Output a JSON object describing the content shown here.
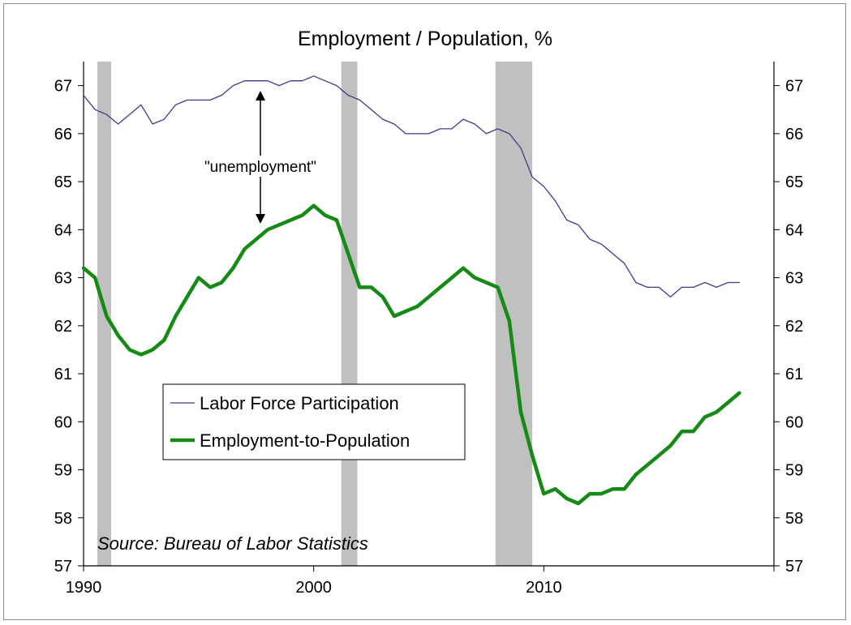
{
  "chart_data": {
    "type": "line",
    "title": "Employment / Population, %",
    "source": "Source: Bureau of Labor Statistics",
    "annotation": "\"unemployment\"",
    "x_range": [
      1990,
      2020
    ],
    "ylim": [
      57,
      67.5
    ],
    "y_ticks": [
      57,
      58,
      59,
      60,
      61,
      62,
      63,
      64,
      65,
      66,
      67
    ],
    "y_tick_labels": [
      "57",
      "58",
      "59",
      "60",
      "61",
      "62",
      "63",
      "64",
      "65",
      "66",
      "67"
    ],
    "x_ticks": [
      1990,
      2000,
      2010
    ],
    "x_tick_labels": [
      "1990",
      "2000",
      "2010"
    ],
    "recessions": [
      [
        1990.6,
        1991.2
      ],
      [
        2001.2,
        2001.9
      ],
      [
        2007.9,
        2009.5
      ]
    ],
    "legend": {
      "placement": "center-left"
    },
    "series": [
      {
        "name": "Labor Force Participation",
        "color": "#3c3c8c",
        "style": "thin",
        "x": [
          1990.0,
          1990.5,
          1991.0,
          1991.5,
          1992.0,
          1992.5,
          1993.0,
          1993.5,
          1994.0,
          1994.5,
          1995.0,
          1995.5,
          1996.0,
          1996.5,
          1997.0,
          1997.5,
          1998.0,
          1998.5,
          1999.0,
          1999.5,
          2000.0,
          2000.5,
          2001.0,
          2001.5,
          2002.0,
          2002.5,
          2003.0,
          2003.5,
          2004.0,
          2004.5,
          2005.0,
          2005.5,
          2006.0,
          2006.5,
          2007.0,
          2007.5,
          2008.0,
          2008.5,
          2009.0,
          2009.5,
          2010.0,
          2010.5,
          2011.0,
          2011.5,
          2012.0,
          2012.5,
          2013.0,
          2013.5,
          2014.0,
          2014.5,
          2015.0,
          2015.5,
          2016.0,
          2016.5,
          2017.0,
          2017.5,
          2018.0,
          2018.5
        ],
        "values": [
          66.8,
          66.5,
          66.4,
          66.2,
          66.4,
          66.6,
          66.2,
          66.3,
          66.6,
          66.7,
          66.7,
          66.7,
          66.8,
          67.0,
          67.1,
          67.1,
          67.1,
          67.0,
          67.1,
          67.1,
          67.2,
          67.1,
          67.0,
          66.8,
          66.7,
          66.5,
          66.3,
          66.2,
          66.0,
          66.0,
          66.0,
          66.1,
          66.1,
          66.3,
          66.2,
          66.0,
          66.1,
          66.0,
          65.7,
          65.1,
          64.9,
          64.6,
          64.2,
          64.1,
          63.8,
          63.7,
          63.5,
          63.3,
          62.9,
          62.8,
          62.8,
          62.6,
          62.8,
          62.8,
          62.9,
          62.8,
          62.9,
          62.9
        ]
      },
      {
        "name": "Employment-to-Population",
        "color": "#158a15",
        "style": "thick",
        "x": [
          1990.0,
          1990.5,
          1991.0,
          1991.5,
          1992.0,
          1992.5,
          1993.0,
          1993.5,
          1994.0,
          1994.5,
          1995.0,
          1995.5,
          1996.0,
          1996.5,
          1997.0,
          1997.5,
          1998.0,
          1998.5,
          1999.0,
          1999.5,
          2000.0,
          2000.5,
          2001.0,
          2001.5,
          2002.0,
          2002.5,
          2003.0,
          2003.5,
          2004.0,
          2004.5,
          2005.0,
          2005.5,
          2006.0,
          2006.5,
          2007.0,
          2007.5,
          2008.0,
          2008.5,
          2009.0,
          2009.5,
          2010.0,
          2010.5,
          2011.0,
          2011.5,
          2012.0,
          2012.5,
          2013.0,
          2013.5,
          2014.0,
          2014.5,
          2015.0,
          2015.5,
          2016.0,
          2016.5,
          2017.0,
          2017.5,
          2018.0,
          2018.5
        ],
        "values": [
          63.2,
          63.0,
          62.2,
          61.8,
          61.5,
          61.4,
          61.5,
          61.7,
          62.2,
          62.6,
          63.0,
          62.8,
          62.9,
          63.2,
          63.6,
          63.8,
          64.0,
          64.1,
          64.2,
          64.3,
          64.5,
          64.3,
          64.2,
          63.5,
          62.8,
          62.8,
          62.6,
          62.2,
          62.3,
          62.4,
          62.6,
          62.8,
          63.0,
          63.2,
          63.0,
          62.9,
          62.8,
          62.1,
          60.2,
          59.3,
          58.5,
          58.6,
          58.4,
          58.3,
          58.5,
          58.5,
          58.6,
          58.6,
          58.9,
          59.1,
          59.3,
          59.5,
          59.8,
          59.8,
          60.1,
          60.2,
          60.4,
          60.6
        ]
      }
    ]
  }
}
